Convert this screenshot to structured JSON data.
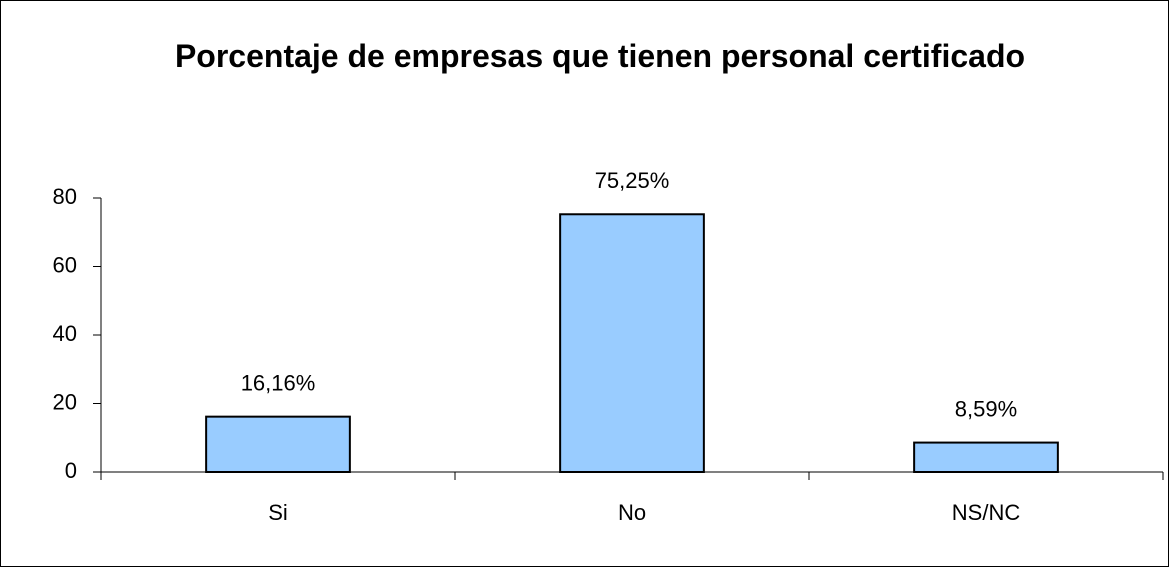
{
  "chart_data": {
    "type": "bar",
    "title": "Porcentaje de empresas que tienen personal certificado",
    "categories": [
      "Si",
      "No",
      "NS/NC"
    ],
    "values": [
      16.16,
      75.25,
      8.59
    ],
    "value_labels": [
      "16,16%",
      "75,25%",
      "8,59%"
    ],
    "color": "#99ccff",
    "ylim": [
      0,
      80
    ],
    "yticks": [
      0,
      20,
      40,
      60,
      80
    ],
    "grid": false
  }
}
